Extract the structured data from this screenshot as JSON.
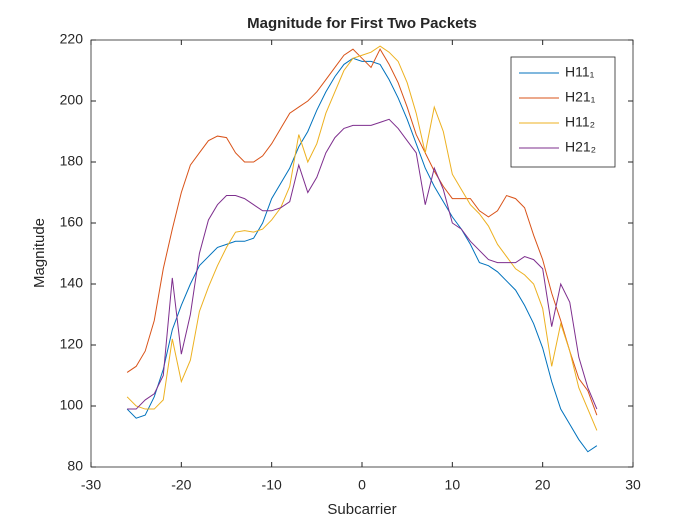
{
  "chart_data": {
    "type": "line",
    "title": "Magnitude for First Two Packets",
    "xlabel": "Subcarrier",
    "ylabel": "Magnitude",
    "x": [
      -26,
      -25,
      -24,
      -23,
      -22,
      -21,
      -20,
      -19,
      -18,
      -17,
      -16,
      -15,
      -14,
      -13,
      -12,
      -11,
      -10,
      -9,
      -8,
      -7,
      -6,
      -5,
      -4,
      -3,
      -2,
      -1,
      0,
      1,
      2,
      3,
      4,
      5,
      6,
      7,
      8,
      9,
      10,
      11,
      12,
      13,
      14,
      15,
      16,
      17,
      18,
      19,
      20,
      21,
      22,
      23,
      24,
      25,
      26
    ],
    "series": [
      {
        "name": "H11₁",
        "color": "#0072bd",
        "values": [
          99,
          96,
          97,
          103,
          112,
          125,
          133,
          140,
          146,
          149,
          152,
          153,
          154,
          154,
          155,
          160,
          168,
          173,
          178,
          185,
          190,
          197,
          203,
          208,
          212,
          214,
          213,
          213,
          212,
          207,
          201,
          194,
          186,
          178,
          172,
          167,
          162,
          158,
          153,
          147,
          146,
          144,
          141,
          138,
          133,
          127,
          119,
          108,
          99,
          94,
          89,
          85,
          87
        ]
      },
      {
        "name": "H21₁",
        "color": "#d95319",
        "values": [
          111,
          113,
          118,
          128,
          145,
          158,
          170,
          179,
          183,
          187,
          188.5,
          188,
          183,
          180,
          180,
          182,
          186,
          191,
          196,
          198,
          200,
          203,
          207,
          211,
          215,
          217,
          214,
          211,
          217,
          212,
          206,
          198,
          189,
          183,
          177,
          172,
          168,
          168,
          168,
          164,
          162,
          164,
          169,
          168,
          165,
          156,
          148,
          137,
          128,
          118,
          109,
          105,
          97
        ]
      },
      {
        "name": "H11₂",
        "color": "#edb120",
        "values": [
          103,
          100,
          99,
          99,
          102,
          122,
          108,
          115,
          131,
          139,
          146,
          152,
          157,
          157.5,
          157,
          158,
          161,
          165,
          172,
          189,
          180,
          186,
          196,
          203,
          210,
          214,
          215,
          216,
          218,
          216,
          213,
          206,
          196,
          183,
          198,
          190,
          176,
          171,
          166,
          163,
          159,
          153,
          149,
          145,
          143,
          140,
          132,
          113,
          127,
          118,
          106,
          99,
          92
        ]
      },
      {
        "name": "H21₂",
        "color": "#7e2f8e",
        "values": [
          99,
          99,
          102,
          104,
          110,
          142,
          117,
          130,
          150,
          161,
          166,
          169,
          169,
          168,
          166,
          164,
          164,
          165,
          167,
          179,
          170,
          175,
          183,
          188,
          191,
          192,
          192,
          192,
          193,
          194,
          191,
          187,
          183,
          166,
          178,
          171,
          160,
          158,
          154,
          151,
          148,
          147,
          147,
          147,
          149,
          148,
          145,
          126,
          140,
          134,
          116,
          106,
          99
        ]
      }
    ],
    "xlim": [
      -30,
      30
    ],
    "xticks": [
      -30,
      -20,
      -10,
      0,
      10,
      20,
      30
    ],
    "ylim": [
      80,
      220
    ],
    "yticks": [
      80,
      100,
      120,
      140,
      160,
      180,
      200,
      220
    ],
    "grid": false,
    "legend": "northeast"
  }
}
